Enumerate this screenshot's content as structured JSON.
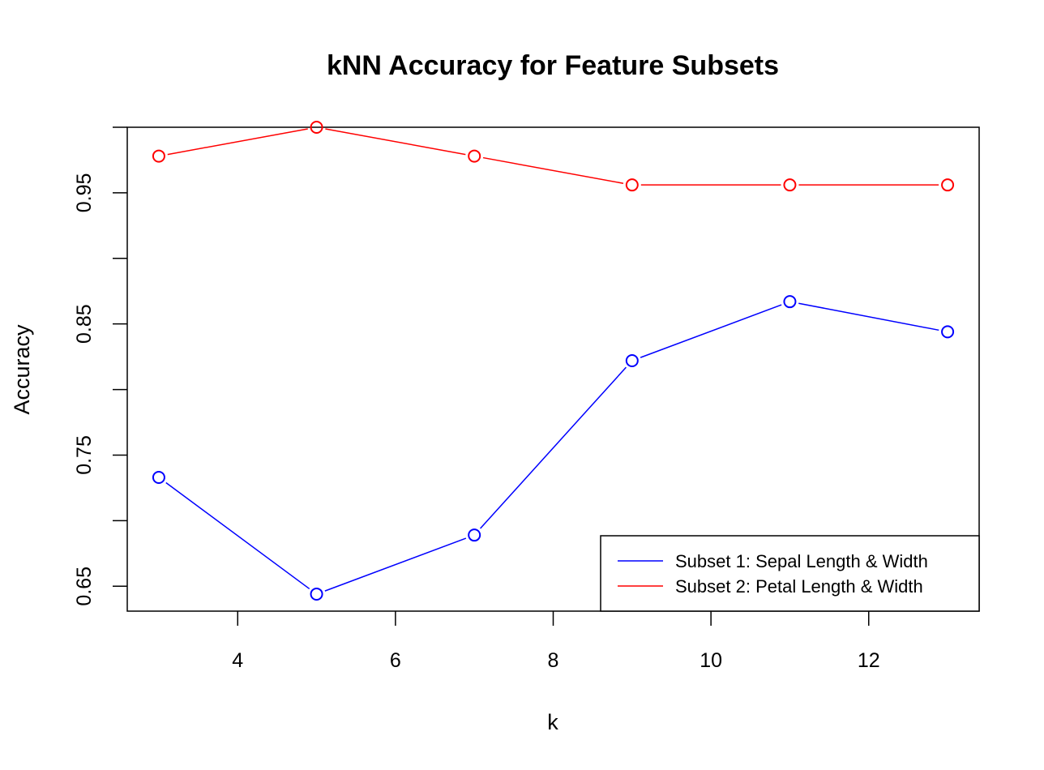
{
  "chart_data": {
    "type": "line",
    "title": "kNN Accuracy for Feature Subsets",
    "xlabel": "k",
    "ylabel": "Accuracy",
    "x": [
      3,
      5,
      7,
      9,
      11,
      13
    ],
    "xlim": [
      2.6,
      13.4
    ],
    "ylim": [
      0.631,
      1.0
    ],
    "xticks": [
      4,
      6,
      8,
      10,
      12
    ],
    "xtick_labels": [
      "4",
      "6",
      "8",
      "10",
      "12"
    ],
    "yticks": [
      0.65,
      0.7,
      0.75,
      0.8,
      0.85,
      0.9,
      0.95,
      1.0
    ],
    "ytick_labels": [
      "0.65",
      "",
      "0.75",
      "",
      "0.85",
      "",
      "0.95",
      ""
    ],
    "grid": false,
    "legend_position": "bottom-right",
    "series": [
      {
        "name": "Subset 1: Sepal Length & Width",
        "color": "#0000ff",
        "values": [
          0.733,
          0.644,
          0.689,
          0.822,
          0.867,
          0.844
        ]
      },
      {
        "name": "Subset 2: Petal Length & Width",
        "color": "#ff0000",
        "values": [
          0.978,
          1.0,
          0.978,
          0.956,
          0.956,
          0.956
        ]
      }
    ]
  }
}
